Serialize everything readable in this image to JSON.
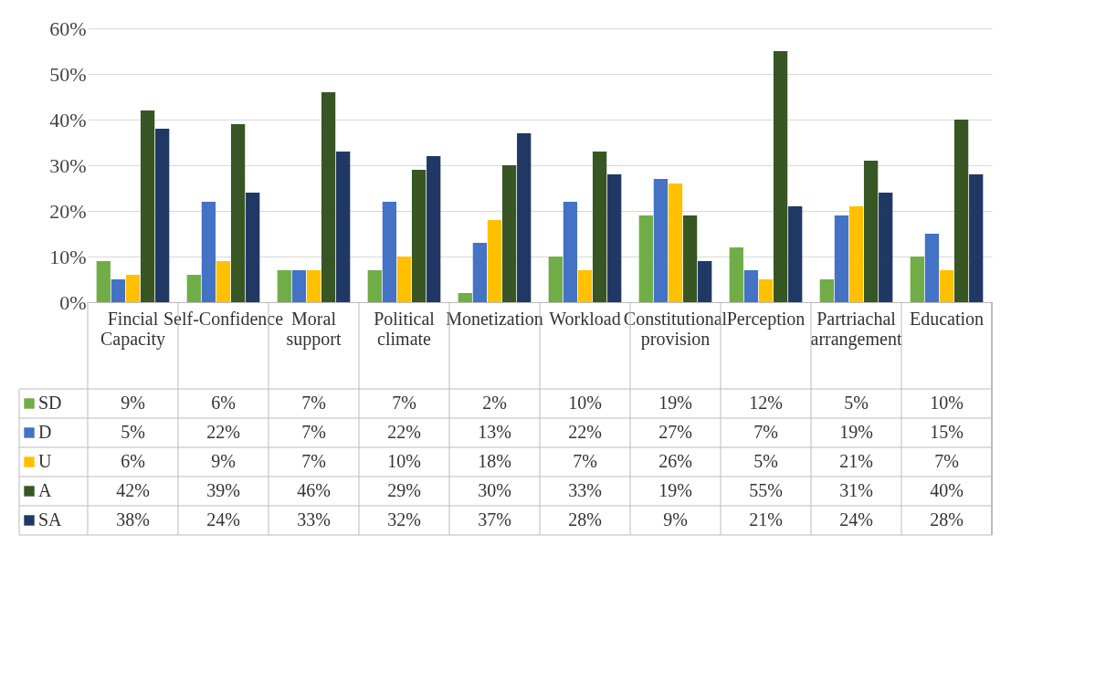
{
  "chart_data": {
    "type": "bar",
    "categories": [
      "Fincial Capacity",
      "Self-Confidence",
      "Moral support",
      "Political climate",
      "Monetization",
      "Workload",
      "Constitutional provision",
      "Perception",
      "Partriachal arrangement",
      "Education"
    ],
    "series": [
      {
        "name": "SD",
        "color": "#70ad47",
        "values": [
          9,
          6,
          7,
          7,
          2,
          10,
          19,
          12,
          5,
          10
        ],
        "value_labels": [
          "9%",
          "6%",
          "7%",
          "7%",
          "2%",
          "10%",
          "19%",
          "12%",
          "5%",
          "10%"
        ]
      },
      {
        "name": "D",
        "color": "#4472c4",
        "values": [
          5,
          22,
          7,
          22,
          13,
          22,
          27,
          7,
          19,
          15
        ],
        "value_labels": [
          "5%",
          "22%",
          "7%",
          "22%",
          "13%",
          "22%",
          "27%",
          "7%",
          "19%",
          "15%"
        ]
      },
      {
        "name": "U",
        "color": "#ffc000",
        "values": [
          6,
          9,
          7,
          10,
          18,
          7,
          26,
          5,
          21,
          7
        ],
        "value_labels": [
          "6%",
          "9%",
          "7%",
          "10%",
          "18%",
          "7%",
          "26%",
          "5%",
          "21%",
          "7%"
        ]
      },
      {
        "name": "A",
        "color": "#375623",
        "values": [
          42,
          39,
          46,
          29,
          30,
          33,
          19,
          55,
          31,
          40
        ],
        "value_labels": [
          "42%",
          "39%",
          "46%",
          "29%",
          "30%",
          "33%",
          "19%",
          "55%",
          "31%",
          "40%"
        ]
      },
      {
        "name": "SA",
        "color": "#203864",
        "values": [
          38,
          24,
          33,
          32,
          37,
          28,
          9,
          21,
          24,
          28
        ],
        "value_labels": [
          "38%",
          "24%",
          "33%",
          "32%",
          "37%",
          "28%",
          "9%",
          "21%",
          "24%",
          "28%"
        ]
      }
    ],
    "ylim": [
      0,
      60
    ],
    "yticks": [
      {
        "value": 0,
        "label": "0%"
      },
      {
        "value": 10,
        "label": "10%"
      },
      {
        "value": 20,
        "label": "20%"
      },
      {
        "value": 30,
        "label": "30%"
      },
      {
        "value": 40,
        "label": "40%"
      },
      {
        "value": 50,
        "label": "50%"
      },
      {
        "value": 60,
        "label": "60%"
      }
    ],
    "grid": "y",
    "legend": "bottom"
  }
}
